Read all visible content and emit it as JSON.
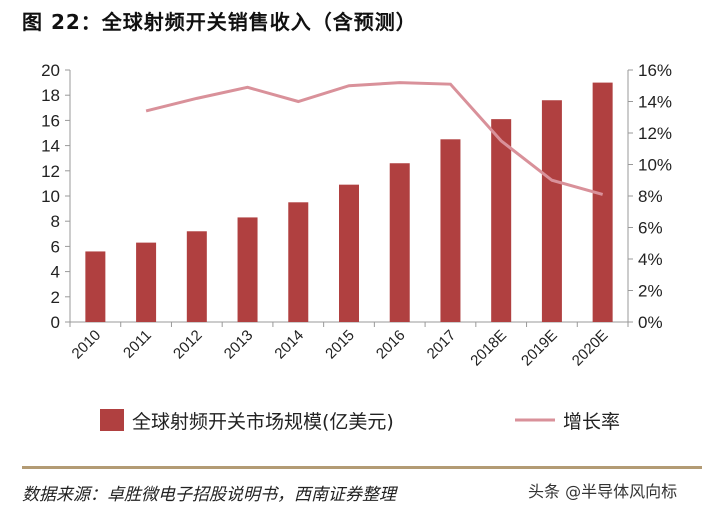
{
  "title": "图 22：全球射频开关销售收入（含预测）",
  "source": "数据来源：卓胜微电子招股说明书，西南证券整理",
  "watermark": "头条 @半导体风向标",
  "chart_data": {
    "type": "bar+line",
    "title": "图 22：全球射频开关销售收入（含预测）",
    "categories": [
      "2010",
      "2011",
      "2012",
      "2013",
      "2014",
      "2015",
      "2016",
      "2017",
      "2018E",
      "2019E",
      "2020E"
    ],
    "series": [
      {
        "name": "全球射频开关市场规模(亿美元)",
        "type": "bar",
        "axis": "left",
        "color": "#b04040",
        "values": [
          5.6,
          6.3,
          7.2,
          8.3,
          9.5,
          10.9,
          12.6,
          14.5,
          16.1,
          17.6,
          19.0
        ]
      },
      {
        "name": "增长率",
        "type": "line",
        "axis": "right",
        "color": "#d9919a",
        "values": [
          null,
          13.4,
          14.2,
          14.9,
          14.0,
          15.0,
          15.2,
          15.1,
          11.5,
          9.0,
          8.1
        ]
      }
    ],
    "left_axis": {
      "range": [
        0,
        20
      ],
      "ticks": [
        "0",
        "2",
        "4",
        "6",
        "8",
        "10",
        "12",
        "14",
        "16",
        "18",
        "20"
      ]
    },
    "right_axis": {
      "range": [
        0,
        16
      ],
      "ticks": [
        "0%",
        "2%",
        "4%",
        "6%",
        "8%",
        "10%",
        "12%",
        "14%",
        "16%"
      ]
    },
    "grid": false,
    "legend": "bottom"
  }
}
